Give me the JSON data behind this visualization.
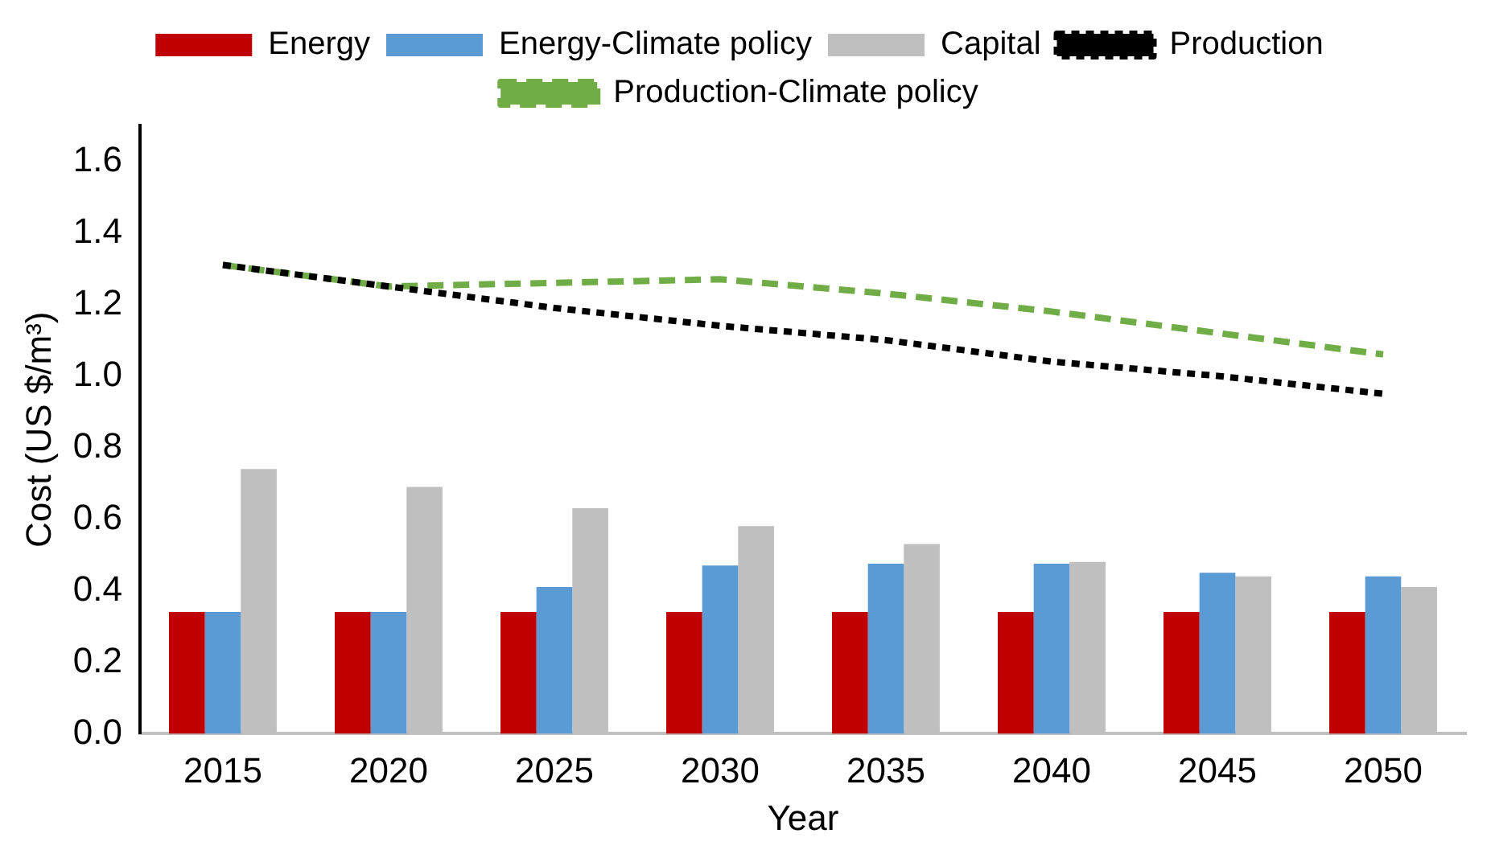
{
  "chart_data": {
    "type": "bar",
    "xlabel": "Year",
    "ylabel": "Cost (US $/m³)",
    "categories": [
      "2015",
      "2020",
      "2025",
      "2030",
      "2035",
      "2040",
      "2045",
      "2050"
    ],
    "series": [
      {
        "name": "Energy",
        "color": "#c00000",
        "values": [
          0.34,
          0.34,
          0.34,
          0.34,
          0.34,
          0.34,
          0.34,
          0.34
        ]
      },
      {
        "name": "Energy-Climate policy",
        "color": "#5b9bd5",
        "values": [
          0.34,
          0.34,
          0.41,
          0.47,
          0.475,
          0.475,
          0.45,
          0.44
        ]
      },
      {
        "name": "Capital",
        "color": "#bfbfbf",
        "values": [
          0.74,
          0.69,
          0.63,
          0.58,
          0.53,
          0.48,
          0.44,
          0.41
        ]
      },
      {
        "name": "Production",
        "type": "line",
        "color": "#000000",
        "line_style": "dotted",
        "marker": "none",
        "values": [
          1.31,
          1.25,
          1.19,
          1.14,
          1.1,
          1.04,
          1.0,
          0.95
        ]
      },
      {
        "name": "Production-Climate policy",
        "type": "line",
        "color": "#70ad47",
        "line_style": "dashed",
        "marker": "none",
        "values": [
          1.31,
          1.25,
          1.26,
          1.27,
          1.23,
          1.18,
          1.12,
          1.06
        ]
      }
    ],
    "ylim": [
      0,
      1.7
    ],
    "yticks": [
      {
        "value": 0,
        "label": "0.0"
      },
      0.2,
      0.4,
      0.6,
      0.8,
      {
        "value": 1,
        "label": "1.0"
      },
      1.2,
      1.4,
      1.6
    ],
    "grid": false,
    "legend": "top"
  }
}
